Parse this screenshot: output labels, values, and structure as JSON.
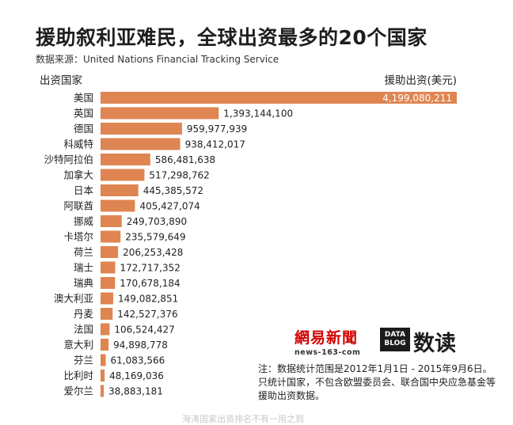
{
  "title": "援助叙利亚难民，全球出资最多的20个国家",
  "source": "数据来源：United Nations Financial Tracking Service",
  "footnote": "注：数据统计范围是2012年1月1日 - 2015年9月6日。只统计国家，不包含欧盟委员会、联合国中央应急基金等援助出资数据。",
  "logos": {
    "netease_brand": "網易新聞",
    "netease_domain": "news-163-com",
    "datablog_badge": "DATA BLOG",
    "datablog_word": "数读"
  },
  "watermark": "海涛国家出资排名不有一用之到",
  "chart_data": {
    "type": "bar",
    "orientation": "horizontal",
    "category_header": "出资国家",
    "value_header": "援助出资(美元)",
    "bar_color": "#df8552",
    "categories": [
      "美国",
      "英国",
      "德国",
      "科威特",
      "沙特阿拉伯",
      "加拿大",
      "日本",
      "阿联酋",
      "挪威",
      "卡塔尔",
      "荷兰",
      "瑞士",
      "瑞典",
      "澳大利亚",
      "丹麦",
      "法国",
      "意大利",
      "芬兰",
      "比利时",
      "爱尔兰"
    ],
    "values": [
      4199080211,
      1393144100,
      959977939,
      938412017,
      586481638,
      517298762,
      445385572,
      405427074,
      249703890,
      235579649,
      206253428,
      172717352,
      170678184,
      149082851,
      142527376,
      106524427,
      94898778,
      61083566,
      48169036,
      38883181
    ],
    "value_labels": [
      "4,199,080,211",
      "1,393,144,100",
      "959,977,939",
      "938,412,017",
      "586,481,638",
      "517,298,762",
      "445,385,572",
      "405,427,074",
      "249,703,890",
      "235,579,649",
      "206,253,428",
      "172,717,352",
      "170,678,184",
      "149,082,851",
      "142,527,376",
      "106,524,427",
      "94,898,778",
      "61,083,566",
      "48,169,036",
      "38,883,181"
    ],
    "xlim": [
      0,
      4199080211
    ]
  }
}
